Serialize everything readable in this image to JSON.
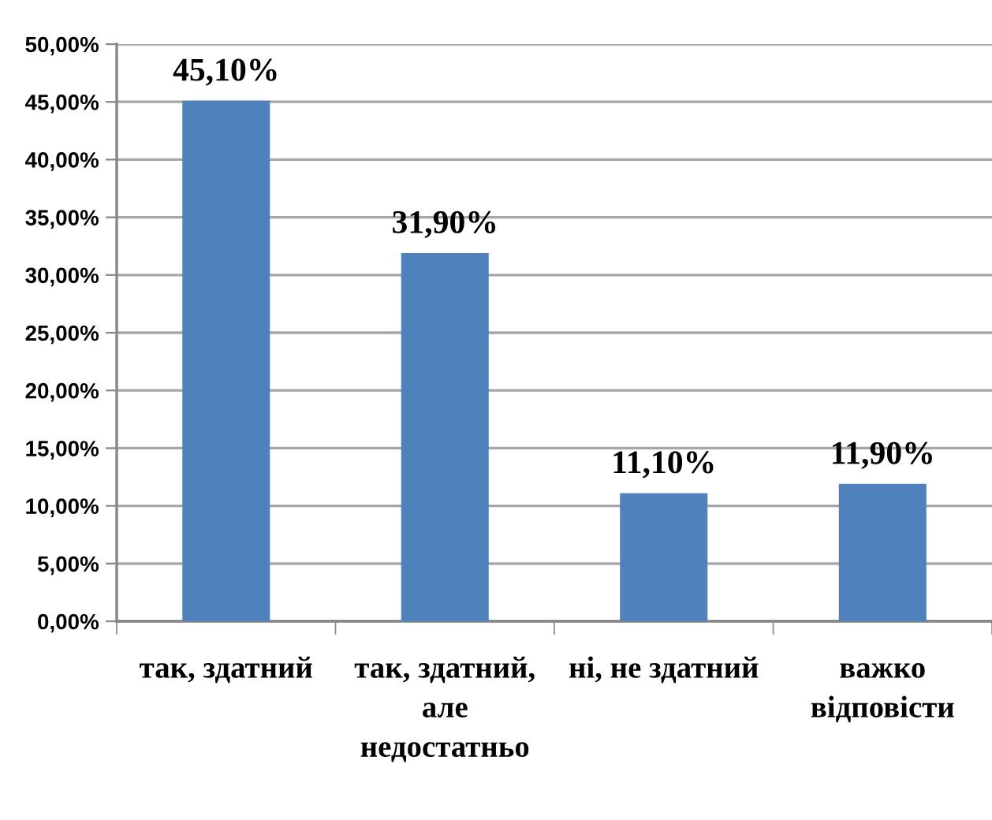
{
  "chart_data": {
    "type": "bar",
    "categories": [
      "так, здатний",
      "так, здатний, але недостатньо",
      "ні, не здатний",
      "важко відповісти"
    ],
    "values": [
      45.1,
      31.9,
      11.1,
      11.9
    ],
    "value_labels": [
      "45,10%",
      "31,90%",
      "11,10%",
      "11,90%"
    ],
    "color": "#4f81bd",
    "ylim": [
      0,
      50
    ],
    "yticks": [
      {
        "value": 0,
        "label": "0,00%"
      },
      {
        "value": 5,
        "label": "5,00%"
      },
      {
        "value": 10,
        "label": "10,00%"
      },
      {
        "value": 15,
        "label": "15,00%"
      },
      {
        "value": 20,
        "label": "20,00%"
      },
      {
        "value": 25,
        "label": "25,00%"
      },
      {
        "value": 30,
        "label": "30,00%"
      },
      {
        "value": 35,
        "label": "35,00%"
      },
      {
        "value": 40,
        "label": "40,00%"
      },
      {
        "value": 45,
        "label": "45,00%"
      },
      {
        "value": 50,
        "label": "50,00%"
      }
    ],
    "grid": "y"
  }
}
